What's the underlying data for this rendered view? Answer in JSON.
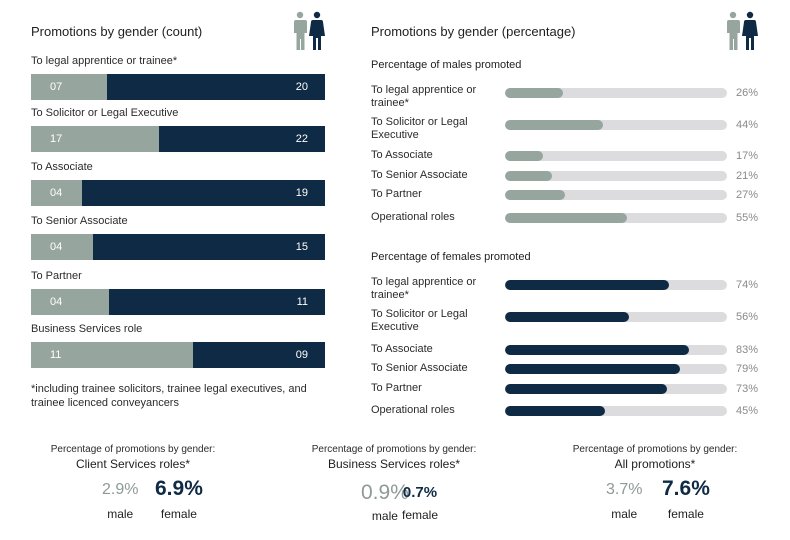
{
  "left": {
    "title": "Promotions by gender (count)",
    "footnote": "*including trainee solicitors, trainee legal executives, and trainee licenced conveyancers"
  },
  "right": {
    "title": "Promotions by gender (percentage)",
    "male_subtitle": "Percentage of males promoted",
    "female_subtitle": "Percentage of females promoted"
  },
  "icons": {
    "people": "male-female-people-icon"
  },
  "colors": {
    "male": "#97a59f",
    "female": "#0f2a45",
    "track": "#dcdcdf"
  },
  "chart_data": [
    {
      "type": "bar",
      "stacked": true,
      "orientation": "horizontal",
      "title": "Promotions by gender (count)",
      "categories": [
        "To legal apprentice or trainee*",
        "To Solicitor or Legal Executive",
        "To Associate",
        "To Senior Associate",
        "To Partner",
        "Business Services role"
      ],
      "series": [
        {
          "values": [
            7,
            17,
            4,
            4,
            4,
            11
          ],
          "labels": [
            "07",
            "17",
            "04",
            "04",
            "04",
            "11"
          ]
        },
        {
          "values": [
            20,
            22,
            19,
            15,
            11,
            9
          ],
          "labels": [
            "20",
            "22",
            "19",
            "15",
            "11",
            "09"
          ]
        }
      ]
    },
    {
      "type": "bar",
      "orientation": "horizontal",
      "title": "Percentage of males promoted",
      "categories": [
        "To legal apprentice or trainee*",
        "To Solicitor or Legal Executive",
        "To Associate",
        "To Senior Associate",
        "To Partner",
        "Operational roles"
      ],
      "values": [
        26,
        44,
        17,
        21,
        27,
        55
      ],
      "labels": [
        "26%",
        "44%",
        "17%",
        "21%",
        "27%",
        "55%"
      ],
      "xlim": [
        0,
        100
      ]
    },
    {
      "type": "bar",
      "orientation": "horizontal",
      "title": "Percentage of females promoted",
      "categories": [
        "To legal apprentice or trainee*",
        "To Solicitor or Legal Executive",
        "To Associate",
        "To Senior Associate",
        "To Partner",
        "Operational roles"
      ],
      "values": [
        74,
        56,
        83,
        79,
        73,
        45
      ],
      "labels": [
        "74%",
        "56%",
        "83%",
        "79%",
        "73%",
        "45%"
      ],
      "xlim": [
        0,
        100
      ]
    }
  ],
  "summaries": [
    {
      "caption": "Percentage of promotions by gender:",
      "type": "Client Services roles*",
      "male_value": "2.9%",
      "female_value": "6.9%",
      "male_label": "male",
      "female_label": "female"
    },
    {
      "caption": "Percentage of promotions by gender:",
      "type": "Business Services roles*",
      "male_value": "0.9%",
      "female_value": "0.7%",
      "male_label": "male",
      "female_label": "female"
    },
    {
      "caption": "Percentage of promotions by gender:",
      "type": "All promotions*",
      "male_value": "3.7%",
      "female_value": "7.6%",
      "male_label": "male",
      "female_label": "female"
    }
  ]
}
